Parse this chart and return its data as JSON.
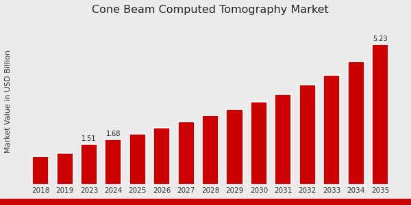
{
  "title": "Cone Beam Computed Tomography Market",
  "ylabel": "Market Value in USD Billion",
  "categories": [
    "2018",
    "2019",
    "2023",
    "2024",
    "2025",
    "2026",
    "2027",
    "2028",
    "2029",
    "2030",
    "2031",
    "2032",
    "2033",
    "2034",
    "2035"
  ],
  "values": [
    1.05,
    1.18,
    1.51,
    1.68,
    1.88,
    2.12,
    2.35,
    2.58,
    2.82,
    3.1,
    3.38,
    3.72,
    4.08,
    4.6,
    5.23
  ],
  "bar_color": "#cc0000",
  "label_values": {
    "2023": "1.51",
    "2024": "1.68",
    "2035": "5.23"
  },
  "background_color": "#ebebeb",
  "title_fontsize": 11.5,
  "label_fontsize": 7,
  "ylabel_fontsize": 8,
  "xlabel_fontsize": 7.5,
  "ylim": [
    0,
    6.2
  ],
  "bottom_strip_color": "#cc0000"
}
